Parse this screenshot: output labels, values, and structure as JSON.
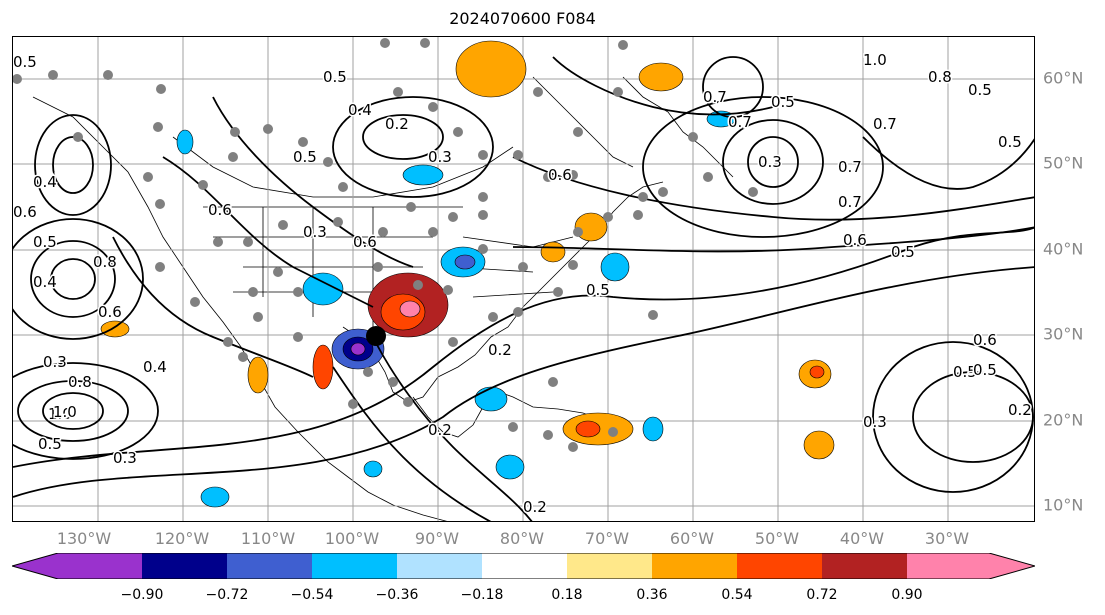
{
  "title": "2024070600 F084",
  "longitude_labels": [
    "130°W",
    "120°W",
    "110°W",
    "100°W",
    "90°W",
    "80°W",
    "70°W",
    "60°W",
    "50°W",
    "40°W",
    "30°W"
  ],
  "latitude_labels": [
    "60°N",
    "50°N",
    "40°N",
    "30°N",
    "20°N",
    "10°N"
  ],
  "colorbar": {
    "ticks": [
      "−0.90",
      "−0.72",
      "−0.54",
      "−0.36",
      "−0.18",
      "0.18",
      "0.36",
      "0.54",
      "0.72",
      "0.90"
    ],
    "colors": [
      "#9a32cd",
      "#00008b",
      "#3f5fd0",
      "#00bfff",
      "#b0e2ff",
      "#ffffff",
      "#ffe88a",
      "#ffa500",
      "#ff4500",
      "#b22222",
      "#ff82ab"
    ]
  },
  "contour_labels": [
    "0.5",
    "0.4",
    "0.2",
    "0.3",
    "0.6",
    "0.5",
    "0.6",
    "0.7",
    "0.6",
    "0.5",
    "0.3",
    "0.8",
    "1.0",
    "0.4",
    "0.2",
    "0.3",
    "0.5",
    "0.7",
    "0.5",
    "0.5",
    "1.0",
    "0.8",
    "0.5",
    "0.5",
    "0.5",
    "0.4",
    "0.6",
    "0.3",
    "0.8",
    "1.0",
    "0.3",
    "0.7",
    "0.6",
    "0.7",
    "0.5",
    "0.6",
    "0.5",
    "0.4",
    "0.2",
    "0.2",
    "0.2",
    "0.3",
    "0.5",
    "0.6",
    "0.7"
  ],
  "colors": {
    "grid": "#a0a0a0",
    "contour": "#000000",
    "dots": "#808080",
    "tick_labels": "#888888"
  }
}
